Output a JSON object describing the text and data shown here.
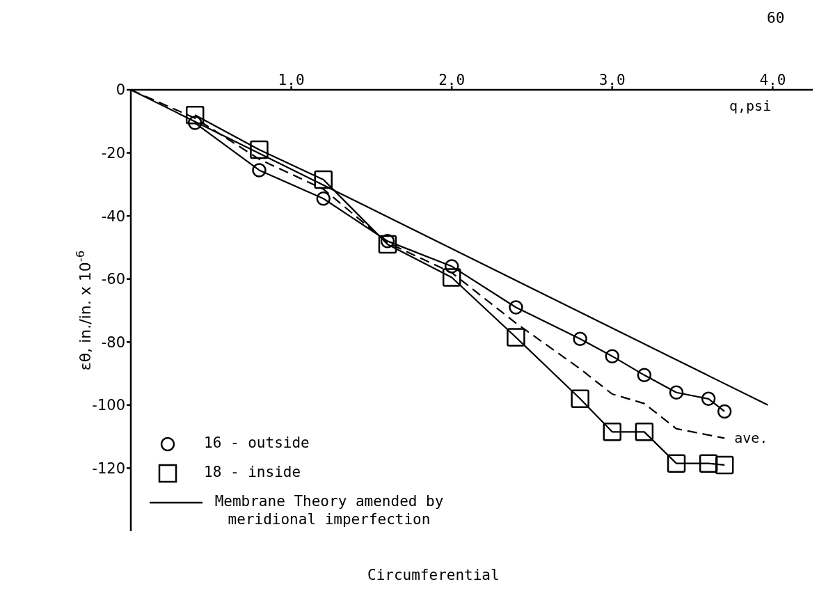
{
  "chart_data": {
    "type": "line",
    "xlabel": "q,psi",
    "ylabel": "εθ, in./in. x 10$^{-6}$",
    "xlim": [
      0,
      4.25
    ],
    "ylim": [
      -140,
      0
    ],
    "xticks": [
      {
        "value": 1,
        "label": "1.0"
      },
      {
        "value": 2,
        "label": "2.0"
      },
      {
        "value": 3,
        "label": "3.0"
      },
      {
        "value": 4,
        "label": "4.0"
      }
    ],
    "yticks": [
      0,
      -20,
      -40,
      -60,
      -80,
      -100,
      -120
    ],
    "legend": "bottom left",
    "series": [
      {
        "name": "16 - outside",
        "color": "#000000",
        "marker": "circle",
        "line_style": "solid",
        "x": [
          0.4,
          0.8,
          1.2,
          1.6,
          2.0,
          2.4,
          2.8,
          3.0,
          3.2,
          3.4,
          3.6,
          3.7
        ],
        "values": [
          -10.5,
          -25.5,
          -34.5,
          -48,
          -56,
          -69,
          -79,
          -84.5,
          -90.5,
          -96,
          -98,
          -102
        ]
      },
      {
        "name": "18 - inside",
        "color": "#000000",
        "marker": "square",
        "line_style": "solid",
        "x": [
          0.4,
          0.8,
          1.2,
          1.6,
          2.0,
          2.4,
          2.8,
          3.0,
          3.2,
          3.4,
          3.6,
          3.7
        ],
        "values": [
          -8,
          -19,
          -28.5,
          -49,
          -59.5,
          -78.5,
          -98,
          -108.5,
          -108.5,
          -118.5,
          -118.5,
          -119
        ]
      },
      {
        "name": "ave.",
        "color": "#000000",
        "marker": "none",
        "line_style": "dashed",
        "x": [
          0,
          0.4,
          0.8,
          1.2,
          1.6,
          2.0,
          2.4,
          2.8,
          3.0,
          3.2,
          3.4,
          3.7
        ],
        "values": [
          0,
          -9,
          -22,
          -31.5,
          -48.5,
          -58,
          -74,
          -88.5,
          -96.5,
          -99.5,
          -107.5,
          -110.5
        ]
      },
      {
        "name": "Membrane Theory amended by meridional imperfection",
        "color": "#000000",
        "marker": "none",
        "line_style": "solid",
        "x": [
          0,
          3.97
        ],
        "values": [
          0,
          -100
        ]
      }
    ],
    "annotations": [
      "60",
      "Circumferential"
    ]
  }
}
